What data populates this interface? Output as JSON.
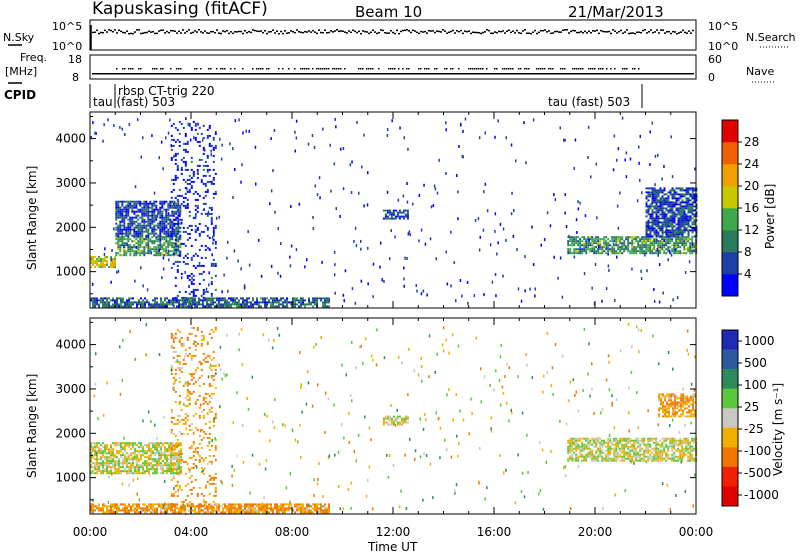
{
  "header": {
    "station": "Kapuskasing (fitACF)",
    "beam": "Beam 10",
    "date": "21/Mar/2013"
  },
  "strip_panels": {
    "nsky": {
      "label": "N.Sky",
      "ticks": [
        "10^5",
        "10^0"
      ]
    },
    "nsearch": {
      "label": "N.Search",
      "ticks": [
        "10^5",
        "10^0"
      ]
    },
    "freq": {
      "label_line1": "Freq.",
      "label_line2": "[MHz]",
      "ticks": [
        "18",
        "8"
      ]
    },
    "nave": {
      "label": "Nave",
      "ticks": [
        "60",
        "0"
      ]
    },
    "cpid": {
      "label": "CPID"
    }
  },
  "cpid_annotations": [
    {
      "text": "rbsp CT-trig 220"
    },
    {
      "text": "tau (fast) 503"
    },
    {
      "text": "tau (fast) 503"
    }
  ],
  "time_axis": {
    "label": "Time UT",
    "ticks": [
      "00:00",
      "04:00",
      "08:00",
      "12:00",
      "16:00",
      "20:00",
      "00:00"
    ]
  },
  "range_axis": {
    "label": "Slant Range [km]",
    "ticks": [
      "1000",
      "2000",
      "3000",
      "4000"
    ]
  },
  "power_scale": {
    "label": "Power [dB]",
    "ticks": [
      "4",
      "8",
      "12",
      "16",
      "20",
      "24",
      "28"
    ],
    "colors": [
      "#0000ff",
      "#1e3fa8",
      "#2a7a5c",
      "#3fa84a",
      "#c8c800",
      "#f0a000",
      "#f06000",
      "#e00000"
    ]
  },
  "velocity_scale": {
    "label": "Velocity [m s⁻¹]",
    "ticks": [
      "1000",
      "500",
      "100",
      "25",
      "-25",
      "-100",
      "-500",
      "-1000"
    ],
    "colors": [
      "#1e2ab4",
      "#2a5aa0",
      "#2e8a5a",
      "#5ac83a",
      "#c8c8c0",
      "#f0b000",
      "#f07800",
      "#f02000",
      "#e00000"
    ]
  },
  "chart_data": [
    {
      "type": "heatmap",
      "title": "",
      "xlabel": "Time UT",
      "ylabel": "Slant Range [km]",
      "zlabel": "Power [dB]",
      "xlim": [
        0,
        24
      ],
      "ylim": [
        180,
        4600
      ],
      "zlim": [
        0,
        32
      ],
      "regions": [
        {
          "t0": 0.0,
          "t1": 1.0,
          "r0": 1100,
          "r1": 1350,
          "value": 18
        },
        {
          "t0": 1.0,
          "t1": 3.6,
          "r0": 1350,
          "r1": 1800,
          "value": 12
        },
        {
          "t0": 1.0,
          "t1": 3.6,
          "r0": 1800,
          "r1": 2600,
          "value": 6
        },
        {
          "t0": 3.2,
          "t1": 5.0,
          "r0": 200,
          "r1": 4400,
          "value": 4
        },
        {
          "t0": 0.0,
          "t1": 9.5,
          "r0": 220,
          "r1": 420,
          "value": 8
        },
        {
          "t0": 11.6,
          "t1": 12.6,
          "r0": 2200,
          "r1": 2400,
          "value": 6
        },
        {
          "t0": 18.9,
          "t1": 24.0,
          "r0": 1400,
          "r1": 1800,
          "value": 12
        },
        {
          "t0": 22.0,
          "t1": 24.0,
          "r0": 1800,
          "r1": 2900,
          "value": 6
        }
      ]
    },
    {
      "type": "heatmap",
      "title": "",
      "xlabel": "Time UT",
      "ylabel": "Slant Range [km]",
      "zlabel": "Velocity [m s⁻¹]",
      "xlim": [
        0,
        24
      ],
      "ylim": [
        180,
        4600
      ],
      "zlim": [
        -1000,
        1000
      ],
      "regions": [
        {
          "t0": 0.0,
          "t1": 3.6,
          "r0": 1100,
          "r1": 1800,
          "value": 0
        },
        {
          "t0": 0.0,
          "t1": 9.5,
          "r0": 220,
          "r1": 420,
          "value": -100
        },
        {
          "t0": 3.2,
          "t1": 5.0,
          "r0": 200,
          "r1": 4400,
          "value": -100
        },
        {
          "t0": 11.6,
          "t1": 12.6,
          "r0": 2200,
          "r1": 2400,
          "value": 0
        },
        {
          "t0": 18.9,
          "t1": 24.0,
          "r0": 1400,
          "r1": 1900,
          "value": 0
        },
        {
          "t0": 22.5,
          "t1": 24.0,
          "r0": 2400,
          "r1": 2900,
          "value": -100
        }
      ]
    }
  ]
}
